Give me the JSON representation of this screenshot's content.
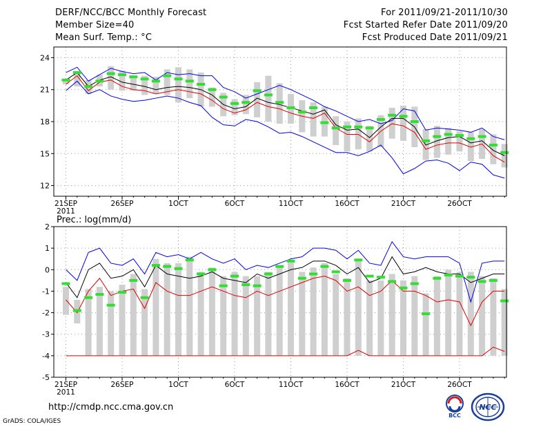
{
  "header": {
    "title": "DERF/NCC/BCC Monthly Forecast",
    "member_size": "Member Size=40",
    "variable": "Mean Surf. Temp.: °C",
    "fcst_range": "For 2011/09/21-2011/10/30",
    "fcst_started": "Fcst Started Refer Date 2011/09/20",
    "fcst_produced": "Fcst Produced Date 2011/09/21"
  },
  "footer": {
    "url": "http://cmdp.ncc.cma.gov.cn",
    "credit": "GrADS: COLA/IGES",
    "logo_left": "BCC",
    "logo_right": "NCC"
  },
  "colors": {
    "ensemble_max": "#0000ee",
    "ensemble_mean": "#000000",
    "ensemble_min": "#e00000",
    "median": "#33dd33",
    "box": "#cfcfcf",
    "grid": "#999999"
  },
  "chart_data": [
    {
      "type": "box",
      "title": "Mean Surf. Temp.: °C",
      "x_labels": [
        "21SEP",
        "26SEP",
        "1OCT",
        "6OCT",
        "11OCT",
        "16OCT",
        "21OCT",
        "26OCT"
      ],
      "x_sublabel": "2011",
      "days": 40,
      "ylim": [
        11,
        25
      ],
      "yticks": [
        12,
        15,
        18,
        21,
        24
      ],
      "max": [
        22.6,
        23.1,
        21.8,
        22.4,
        23.0,
        22.7,
        22.5,
        22.6,
        21.9,
        22.6,
        22.4,
        22.5,
        22.3,
        22.3,
        21.2,
        20.8,
        20.2,
        20.6,
        21.0,
        21.4,
        21.0,
        20.5,
        20.0,
        19.4,
        19.0,
        18.5,
        18.0,
        18.2,
        17.8,
        18.1,
        19.2,
        19.0,
        17.2,
        17.4,
        17.3,
        17.2,
        17.0,
        17.4,
        16.6,
        16.3
      ],
      "mean": [
        21.9,
        22.6,
        21.3,
        21.9,
        22.2,
        21.7,
        21.5,
        21.3,
        21.0,
        21.2,
        21.3,
        21.2,
        21.0,
        20.5,
        19.6,
        19.2,
        19.4,
        20.2,
        19.8,
        19.6,
        19.3,
        19.0,
        18.7,
        19.1,
        17.7,
        17.2,
        17.3,
        16.5,
        17.5,
        18.3,
        18.3,
        17.5,
        15.8,
        16.2,
        16.5,
        16.6,
        16.0,
        16.2,
        15.3,
        14.8
      ],
      "min": [
        21.5,
        22.3,
        20.9,
        21.7,
        21.9,
        21.3,
        21.0,
        20.9,
        20.6,
        20.8,
        21.0,
        20.8,
        20.6,
        20.0,
        19.2,
        18.8,
        19.1,
        19.8,
        19.4,
        19.2,
        18.8,
        18.5,
        18.3,
        18.8,
        17.4,
        16.8,
        16.8,
        16.1,
        17.1,
        17.8,
        17.6,
        17.0,
        15.4,
        15.8,
        16.0,
        16.0,
        15.6,
        15.9,
        14.8,
        14.2
      ],
      "low": [
        20.9,
        21.8,
        20.6,
        21.0,
        20.4,
        20.1,
        19.9,
        20.0,
        20.2,
        20.4,
        20.2,
        19.8,
        19.5,
        18.4,
        17.7,
        17.6,
        18.2,
        18.0,
        17.5,
        16.9,
        17.0,
        16.6,
        16.1,
        15.6,
        15.1,
        15.1,
        14.8,
        15.2,
        15.8,
        14.6,
        13.1,
        13.6,
        14.3,
        14.4,
        14.1,
        13.4,
        14.2,
        14.0,
        13.0,
        12.7
      ],
      "median": [
        21.9,
        22.6,
        21.3,
        21.8,
        22.5,
        22.4,
        22.2,
        22.0,
        21.8,
        22.3,
        22.0,
        21.8,
        21.5,
        21.0,
        20.3,
        19.7,
        19.8,
        20.9,
        20.5,
        19.8,
        19.3,
        18.9,
        19.3,
        17.9,
        17.4,
        17.5,
        17.5,
        17.4,
        18.2,
        18.6,
        18.5,
        18.0,
        16.2,
        16.6,
        16.8,
        16.7,
        16.4,
        16.6,
        15.8,
        15.1
      ],
      "box_top": [
        22.0,
        22.5,
        21.9,
        22.4,
        23.2,
        22.8,
        22.3,
        22.3,
        22.2,
        22.9,
        23.1,
        22.9,
        22.6,
        21.2,
        20.7,
        20.1,
        20.5,
        21.7,
        22.3,
        21.6,
        20.6,
        20.0,
        19.8,
        19.4,
        18.5,
        18.0,
        18.3,
        17.6,
        18.6,
        19.3,
        19.5,
        19.4,
        17.3,
        17.6,
        17.4,
        17.1,
        17.0,
        17.3,
        16.8,
        15.9
      ],
      "box_bot": [
        21.5,
        21.3,
        20.6,
        21.3,
        21.0,
        20.9,
        20.9,
        20.5,
        20.6,
        20.5,
        19.8,
        20.2,
        19.4,
        19.4,
        18.5,
        18.6,
        18.7,
        18.4,
        18.0,
        17.8,
        17.8,
        17.0,
        16.6,
        16.6,
        15.8,
        15.2,
        15.4,
        15.2,
        15.6,
        16.4,
        16.2,
        15.6,
        14.4,
        14.6,
        14.9,
        15.2,
        14.3,
        14.5,
        14.0,
        13.7
      ]
    },
    {
      "type": "box",
      "title": "Prec.: log(mm/d)",
      "x_labels": [
        "21SEP",
        "26SEP",
        "1OCT",
        "6OCT",
        "11OCT",
        "16OCT",
        "21OCT",
        "26OCT"
      ],
      "x_sublabel": "2011",
      "days": 40,
      "ylim": [
        -5,
        2
      ],
      "yticks": [
        -5,
        -4,
        -3,
        -2,
        -1,
        0,
        1,
        2
      ],
      "max": [
        0.0,
        -0.5,
        0.8,
        1.0,
        0.3,
        0.2,
        0.5,
        -0.2,
        0.8,
        0.6,
        0.7,
        0.5,
        0.8,
        0.5,
        0.3,
        0.5,
        0.0,
        0.2,
        0.1,
        0.3,
        0.5,
        0.6,
        1.0,
        1.0,
        0.9,
        0.5,
        0.9,
        0.3,
        0.2,
        1.3,
        0.6,
        0.5,
        0.6,
        0.6,
        0.6,
        0.3,
        -1.5,
        0.3,
        0.4,
        0.4
      ],
      "mean": [
        -0.6,
        -1.3,
        0.0,
        0.3,
        -0.4,
        -0.3,
        0.0,
        -0.8,
        0.2,
        -0.2,
        -0.3,
        -0.4,
        -0.3,
        -0.1,
        -0.4,
        -0.5,
        -0.6,
        -0.2,
        -0.4,
        -0.2,
        0.0,
        0.1,
        0.4,
        0.4,
        0.2,
        -0.2,
        0.1,
        -0.6,
        -0.4,
        0.6,
        -0.2,
        -0.1,
        0.1,
        -0.1,
        -0.2,
        -0.2,
        -0.6,
        -0.4,
        -0.2,
        -0.2
      ],
      "min": [
        -1.4,
        -2.0,
        -1.0,
        -0.4,
        -1.2,
        -1.0,
        -0.9,
        -1.8,
        -0.6,
        -1.0,
        -1.2,
        -1.2,
        -1.0,
        -0.8,
        -1.0,
        -1.2,
        -1.3,
        -1.0,
        -1.2,
        -1.0,
        -0.8,
        -0.6,
        -0.4,
        -0.3,
        -0.5,
        -1.0,
        -0.8,
        -1.2,
        -1.0,
        -0.5,
        -1.0,
        -1.0,
        -1.2,
        -1.5,
        -1.4,
        -1.5,
        -2.6,
        -1.5,
        -1.0,
        -1.0
      ],
      "median": [
        -0.65,
        -1.9,
        -1.3,
        -1.15,
        -1.65,
        -1.05,
        -0.5,
        -1.3,
        0.2,
        0.15,
        0.05,
        0.45,
        -0.2,
        0.0,
        -0.75,
        -0.3,
        -0.7,
        -0.75,
        -0.2,
        0.15,
        0.4,
        -0.4,
        -0.2,
        0.15,
        -0.1,
        -0.5,
        0.45,
        -0.3,
        -0.35,
        -0.55,
        -0.85,
        -0.65,
        -2.05,
        -0.4,
        -0.25,
        -0.3,
        -0.35,
        -0.55,
        -0.5,
        -1.45
      ],
      "box_top": [
        -0.8,
        -1.4,
        -0.9,
        -0.8,
        -1.0,
        -0.7,
        -0.2,
        -0.9,
        0.5,
        0.3,
        0.3,
        0.6,
        -0.1,
        0.1,
        -0.3,
        -0.1,
        -0.3,
        -0.3,
        -0.1,
        0.2,
        0.4,
        -0.1,
        0.1,
        0.3,
        -0.2,
        -0.4,
        0.5,
        -0.5,
        -0.5,
        -0.2,
        -0.5,
        -0.3,
        -1.1,
        -0.3,
        0.0,
        -0.1,
        -0.1,
        -0.3,
        -0.4,
        -0.9
      ],
      "box_bot": [
        -2.1,
        -2.5,
        -4.0,
        -4.0,
        -4.0,
        -4.0,
        -4.0,
        -4.0,
        -4.0,
        -4.0,
        -4.0,
        -4.0,
        -4.0,
        -4.0,
        -4.0,
        -4.0,
        -4.0,
        -4.0,
        -4.0,
        -4.0,
        -4.0,
        -4.0,
        -4.0,
        -4.0,
        -4.0,
        -4.0,
        -4.0,
        -4.0,
        -4.0,
        -4.0,
        -4.0,
        -4.0,
        -4.0,
        -4.0,
        -4.0,
        -4.0,
        -4.0,
        -4.0,
        -4.0,
        -4.0
      ]
    }
  ]
}
